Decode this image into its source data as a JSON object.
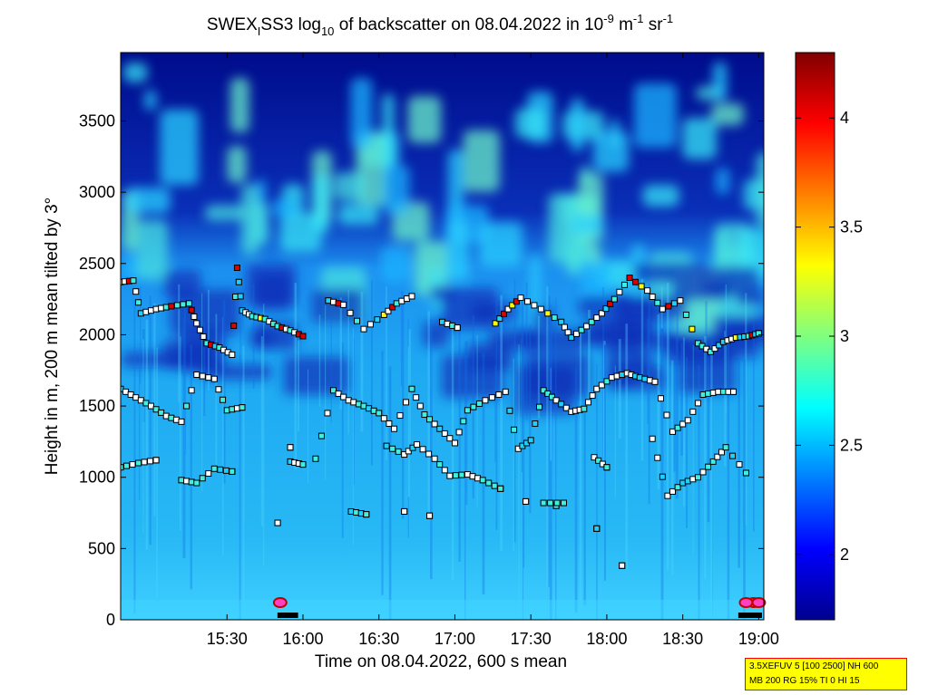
{
  "chart_data": {
    "type": "heatmap",
    "title": {
      "prefix": "SWEX",
      "prefix_sub": "I",
      "mid": "SS3 log",
      "mid_sub": "10",
      "mid2": " of backscatter on 08.04.2022 in 10",
      "unit_sup1": "-9",
      "unit_m": " m",
      "unit_sup2": "-1",
      "unit_sr": " sr",
      "unit_sup3": "-1"
    },
    "xlabel": "Time on 08.04.2022, 600 s mean",
    "ylabel": "Height in m, 200 m mean tilted by 3°",
    "x_ticks": [
      "15:30",
      "16:00",
      "16:30",
      "17:00",
      "17:30",
      "18:00",
      "18:30",
      "19:00"
    ],
    "x_tick_minutes": [
      930,
      960,
      990,
      1020,
      1050,
      1080,
      1110,
      1140
    ],
    "xlim_minutes": [
      888,
      1142
    ],
    "y_ticks": [
      "0",
      "500",
      "1000",
      "1500",
      "2000",
      "2500",
      "3000",
      "3500"
    ],
    "y_tick_values": [
      0,
      500,
      1000,
      1500,
      2000,
      2500,
      3000,
      3500
    ],
    "ylim": [
      0,
      3980
    ],
    "colorbar": {
      "ticks": [
        "2",
        "2.5",
        "3",
        "3.5",
        "4"
      ],
      "tick_values": [
        2,
        2.5,
        3,
        3.5,
        4
      ],
      "range": [
        1.7,
        4.3
      ]
    },
    "cloud_base_layers": [
      {
        "name": "layer-upper",
        "points": [
          [
            888,
            2370
          ],
          [
            893,
            2380
          ],
          [
            896,
            2150
          ],
          [
            902,
            2180
          ],
          [
            908,
            2200
          ],
          [
            915,
            2220
          ],
          [
            918,
            2080
          ],
          [
            922,
            1940
          ],
          [
            927,
            1910
          ],
          [
            932,
            1860
          ],
          [
            934,
            2470
          ],
          [
            936,
            2170
          ],
          [
            940,
            2130
          ],
          [
            945,
            2110
          ],
          [
            950,
            2060
          ],
          [
            955,
            2030
          ],
          [
            960,
            1990
          ],
          [
            970,
            2240
          ],
          [
            976,
            2210
          ],
          [
            984,
            2040
          ],
          [
            992,
            2140
          ],
          [
            997,
            2220
          ],
          [
            1003,
            2270
          ],
          [
            1015,
            2090
          ],
          [
            1021,
            2050
          ],
          [
            1036,
            2080
          ],
          [
            1041,
            2180
          ],
          [
            1046,
            2260
          ],
          [
            1054,
            2180
          ],
          [
            1062,
            2090
          ],
          [
            1066,
            1980
          ],
          [
            1072,
            2060
          ],
          [
            1078,
            2150
          ],
          [
            1083,
            2250
          ],
          [
            1089,
            2400
          ],
          [
            1096,
            2310
          ],
          [
            1102,
            2180
          ],
          [
            1109,
            2240
          ],
          [
            1116,
            1940
          ],
          [
            1121,
            1880
          ],
          [
            1126,
            1950
          ],
          [
            1131,
            1980
          ],
          [
            1136,
            1990
          ],
          [
            1140,
            2010
          ]
        ]
      },
      {
        "name": "layer-middle",
        "points": [
          [
            888,
            1620
          ],
          [
            894,
            1560
          ],
          [
            900,
            1500
          ],
          [
            906,
            1430
          ],
          [
            912,
            1390
          ],
          [
            918,
            1720
          ],
          [
            925,
            1690
          ],
          [
            930,
            1470
          ],
          [
            936,
            1490
          ],
          [
            955,
            1210
          ],
          [
            965,
            1130
          ],
          [
            972,
            1610
          ],
          [
            978,
            1540
          ],
          [
            984,
            1500
          ],
          [
            990,
            1450
          ],
          [
            996,
            1340
          ],
          [
            1003,
            1620
          ],
          [
            1008,
            1440
          ],
          [
            1014,
            1340
          ],
          [
            1020,
            1240
          ],
          [
            1025,
            1470
          ],
          [
            1032,
            1540
          ],
          [
            1040,
            1600
          ],
          [
            1045,
            1200
          ],
          [
            1050,
            1260
          ],
          [
            1055,
            1610
          ],
          [
            1060,
            1540
          ],
          [
            1066,
            1460
          ],
          [
            1071,
            1480
          ],
          [
            1076,
            1620
          ],
          [
            1082,
            1700
          ],
          [
            1088,
            1730
          ],
          [
            1093,
            1700
          ],
          [
            1099,
            1670
          ],
          [
            1106,
            1320
          ],
          [
            1112,
            1400
          ],
          [
            1118,
            1580
          ],
          [
            1124,
            1600
          ],
          [
            1130,
            1600
          ]
        ]
      },
      {
        "name": "layer-lower",
        "points": [
          [
            888,
            1070
          ],
          [
            895,
            1100
          ],
          [
            902,
            1120
          ],
          [
            912,
            980
          ],
          [
            918,
            960
          ],
          [
            925,
            1060
          ],
          [
            932,
            1040
          ],
          [
            955,
            1110
          ],
          [
            960,
            1090
          ],
          [
            993,
            1220
          ],
          [
            1000,
            1160
          ],
          [
            1005,
            1230
          ],
          [
            1012,
            1130
          ],
          [
            1018,
            1010
          ],
          [
            1025,
            1020
          ],
          [
            1031,
            980
          ],
          [
            1038,
            920
          ],
          [
            1048,
            830
          ],
          [
            1060,
            800
          ],
          [
            1075,
            1140
          ],
          [
            1080,
            1070
          ],
          [
            1098,
            1270
          ],
          [
            1104,
            870
          ],
          [
            1110,
            960
          ],
          [
            1116,
            1000
          ],
          [
            1122,
            1110
          ],
          [
            1127,
            1210
          ],
          [
            1135,
            1030
          ]
        ]
      },
      {
        "name": "layer-near-ground",
        "points": [
          [
            950,
            680
          ],
          [
            979,
            760
          ],
          [
            985,
            740
          ],
          [
            1000,
            760
          ],
          [
            1010,
            730
          ],
          [
            1055,
            820
          ],
          [
            1063,
            820
          ],
          [
            1076,
            640
          ],
          [
            1086,
            380
          ]
        ]
      }
    ]
  },
  "info_box": {
    "line1": "3.5XEFUV 5 [100 2500] NH 600",
    "line2": "MB 200 RG 15% TI 0 HI 15"
  }
}
